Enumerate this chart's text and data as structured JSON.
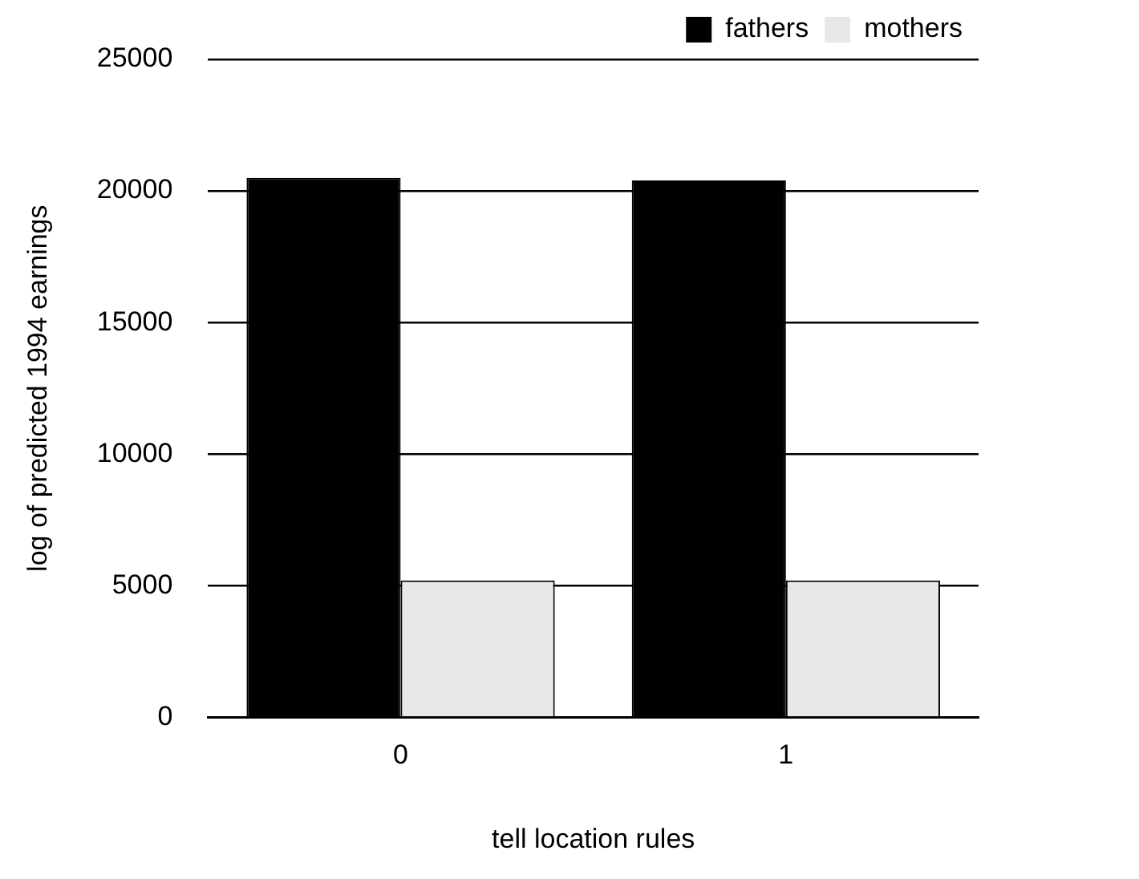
{
  "chart_data": {
    "type": "bar",
    "xlabel": "tell location rules",
    "ylabel": "log of predicted 1994 earnings",
    "categories": [
      "0",
      "1"
    ],
    "series": [
      {
        "name": "fathers",
        "color": "#000000",
        "values": [
          20500,
          20400
        ]
      },
      {
        "name": "mothers",
        "color": "#e8e8e8",
        "values": [
          5200,
          5200
        ]
      }
    ],
    "ylim": [
      0,
      25000
    ],
    "yticks": [
      0,
      5000,
      10000,
      15000,
      20000,
      25000
    ],
    "grid": "y",
    "legend": "top right"
  }
}
